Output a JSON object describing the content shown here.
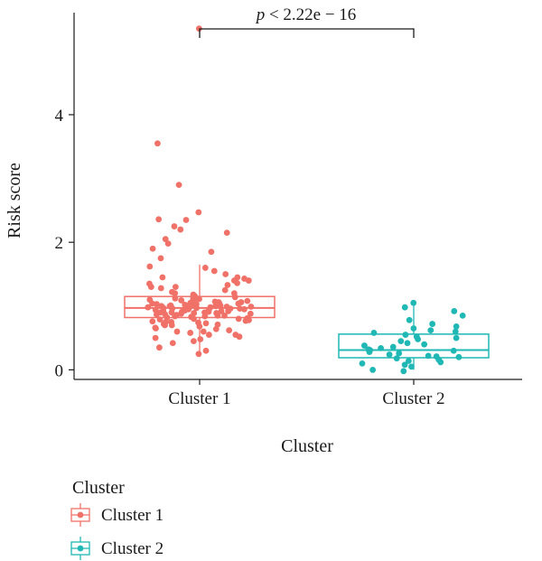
{
  "colors": {
    "cluster1": "#F07168",
    "cluster2": "#1FB8B5",
    "axis": "#1a1a1a"
  },
  "chart_data": {
    "type": "boxplot",
    "xlabel": "Cluster",
    "ylabel": "Risk score",
    "ylim": [
      -0.15,
      5.6
    ],
    "yticks": [
      0,
      2,
      4
    ],
    "categories": [
      "Cluster 1",
      "Cluster 2"
    ],
    "significance": {
      "label_italic": "p",
      "label_rest": " < 2.22e − 16",
      "between": [
        "Cluster 1",
        "Cluster 2"
      ]
    },
    "legend": {
      "title": "Cluster",
      "entries": [
        "Cluster 1",
        "Cluster 2"
      ],
      "placement": "bottom-left"
    },
    "series": [
      {
        "name": "Cluster 1",
        "box": {
          "min": 0.2,
          "q1": 0.82,
          "median": 0.97,
          "q3": 1.15,
          "max": 1.65
        },
        "outliers": [
          5.35,
          3.55,
          2.9,
          2.47,
          2.36,
          2.35,
          2.25,
          2.2,
          2.15,
          2.05,
          1.98,
          1.9,
          1.85,
          1.75
        ],
        "points": [
          0.25,
          0.3,
          0.35,
          0.42,
          0.45,
          0.48,
          0.5,
          0.52,
          0.55,
          0.58,
          0.6,
          0.62,
          0.64,
          0.66,
          0.68,
          0.7,
          0.71,
          0.72,
          0.73,
          0.74,
          0.75,
          0.76,
          0.77,
          0.78,
          0.79,
          0.8,
          0.81,
          0.82,
          0.83,
          0.84,
          0.85,
          0.86,
          0.87,
          0.88,
          0.89,
          0.9,
          0.9,
          0.91,
          0.92,
          0.92,
          0.93,
          0.94,
          0.94,
          0.95,
          0.96,
          0.96,
          0.97,
          0.97,
          0.98,
          0.98,
          0.99,
          1.0,
          1.0,
          1.01,
          1.02,
          1.03,
          1.04,
          1.05,
          1.06,
          1.07,
          1.08,
          1.09,
          1.1,
          1.11,
          1.12,
          1.14,
          1.16,
          1.18,
          1.2,
          1.22,
          1.25,
          1.28,
          1.3,
          1.33,
          1.36,
          1.4,
          1.43,
          1.45,
          1.5,
          1.55,
          1.6,
          1.62,
          0.88,
          0.93,
          1.0,
          0.95,
          1.05,
          0.85,
          1.12,
          0.78,
          0.98,
          1.02,
          0.91,
          1.08,
          0.87,
          0.99,
          1.15,
          0.8,
          0.94,
          1.03,
          0.9,
          0.96,
          1.06,
          0.84,
          1.1,
          0.97,
          0.92,
          1.01,
          0.89,
          1.04,
          0.75,
          1.2,
          0.7,
          1.3,
          0.65,
          1.35,
          0.6,
          1.4,
          0.55,
          1.45
        ]
      },
      {
        "name": "Cluster 2",
        "box": {
          "min": 0.0,
          "q1": 0.19,
          "median": 0.31,
          "q3": 0.56,
          "max": 1.03
        },
        "outliers": [],
        "points": [
          -0.02,
          0.0,
          0.05,
          0.08,
          0.1,
          0.12,
          0.14,
          0.16,
          0.18,
          0.2,
          0.21,
          0.22,
          0.24,
          0.26,
          0.28,
          0.3,
          0.31,
          0.32,
          0.34,
          0.36,
          0.38,
          0.4,
          0.42,
          0.45,
          0.48,
          0.5,
          0.52,
          0.55,
          0.58,
          0.6,
          0.62,
          0.65,
          0.68,
          0.72,
          0.78,
          0.85,
          0.92,
          0.98,
          1.05
        ]
      }
    ]
  }
}
